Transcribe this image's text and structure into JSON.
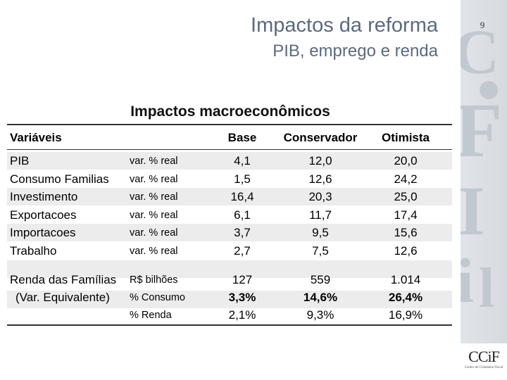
{
  "slide": {
    "title": "Impactos da reforma",
    "subtitle": "PIB, emprego e renda",
    "page_number": "9"
  },
  "logo": {
    "text": "CCiF",
    "subtitle": "Centro de Cidadania Fiscal"
  },
  "table": {
    "title": "Impactos macroeconômicos",
    "headers": {
      "variable": "Variáveis",
      "base": "Base",
      "conservador": "Conservador",
      "otimista": "Otimista"
    },
    "rows": [
      {
        "name": "PIB",
        "unit": "var. % real",
        "base": "4,1",
        "conservador": "12,0",
        "otimista": "20,0"
      },
      {
        "name": "Consumo Familias",
        "unit": "var. % real",
        "base": "1,5",
        "conservador": "12,6",
        "otimista": "24,2"
      },
      {
        "name": "Investimento",
        "unit": "var. % real",
        "base": "16,4",
        "conservador": "20,3",
        "otimista": "25,0"
      },
      {
        "name": "Exportacoes",
        "unit": "var. % real",
        "base": "6,1",
        "conservador": "11,7",
        "otimista": "17,4"
      },
      {
        "name": "Importacoes",
        "unit": "var. % real",
        "base": "3,7",
        "conservador": "9,5",
        "otimista": "15,6"
      },
      {
        "name": "Trabalho",
        "unit": "var. % real",
        "base": "2,7",
        "conservador": "7,5",
        "otimista": "12,6"
      }
    ],
    "renda": {
      "name_line1": "Renda das Famílias",
      "name_line2": "(Var. Equivalente)",
      "rows": [
        {
          "unit": "R$ bilhões",
          "base": "127",
          "conservador": "559",
          "otimista": "1.014"
        },
        {
          "unit": "% Consumo",
          "base": "3,3%",
          "conservador": "14,6%",
          "otimista": "26,4%"
        },
        {
          "unit": "% Renda",
          "base": "2,1%",
          "conservador": "9,3%",
          "otimista": "16,9%"
        }
      ]
    }
  }
}
